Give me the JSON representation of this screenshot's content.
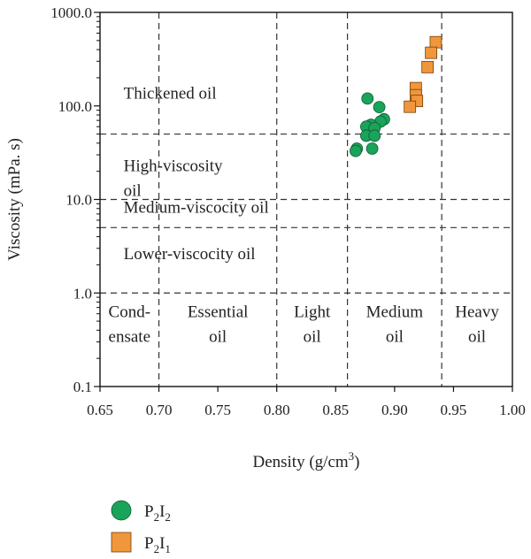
{
  "chart_data": {
    "type": "scatter",
    "xlabel": "Density (g/cm",
    "xlabel_sup": "3",
    "xlabel_end": ")",
    "ylabel": "Viscosity (mPa. s)",
    "xlim": [
      0.65,
      1.0
    ],
    "ylim": [
      0.1,
      1000
    ],
    "yscale": "log",
    "x_ticks": [
      "0.65",
      "0.70",
      "0.75",
      "0.80",
      "0.85",
      "0.90",
      "0.95",
      "1.00"
    ],
    "y_ticks": [
      "0.1",
      "1.0",
      "10.0",
      "100.0",
      "1000.0"
    ],
    "x_tick_values": [
      0.65,
      0.7,
      0.75,
      0.8,
      0.85,
      0.9,
      0.95,
      1.0
    ],
    "y_tick_values": [
      0.1,
      1,
      10,
      100,
      1000
    ],
    "vertical_guides": [
      0.7,
      0.8,
      0.86,
      0.94
    ],
    "horizontal_guides": [
      1,
      5,
      10,
      50
    ],
    "region_labels": [
      {
        "lines": [
          "Thickened oil"
        ],
        "x": 0.67,
        "y": 120
      },
      {
        "lines": [
          "High-viscosity",
          "oil"
        ],
        "x": 0.67,
        "y": 20
      },
      {
        "lines": [
          "Medium-viscocity oil"
        ],
        "x": 0.67,
        "y": 7.2
      },
      {
        "lines": [
          "Lower-viscocity oil"
        ],
        "x": 0.67,
        "y": 2.3
      },
      {
        "lines": [
          "Cond-",
          "ensate"
        ],
        "x": 0.675,
        "y": 0.55
      },
      {
        "lines": [
          "Essential",
          "oil"
        ],
        "x": 0.75,
        "y": 0.55
      },
      {
        "lines": [
          "Light",
          "oil"
        ],
        "x": 0.83,
        "y": 0.55
      },
      {
        "lines": [
          "Medium",
          "oil"
        ],
        "x": 0.9,
        "y": 0.55
      },
      {
        "lines": [
          "Heavy",
          "oil"
        ],
        "x": 0.97,
        "y": 0.55
      }
    ],
    "series": [
      {
        "name_main": "P",
        "name_sub1": "2",
        "name_mid": "I",
        "name_sub2": "2",
        "marker": "circle",
        "color": "#1aa35a",
        "points": [
          {
            "x": 0.877,
            "y": 120
          },
          {
            "x": 0.887,
            "y": 97
          },
          {
            "x": 0.891,
            "y": 72
          },
          {
            "x": 0.888,
            "y": 68
          },
          {
            "x": 0.88,
            "y": 63
          },
          {
            "x": 0.876,
            "y": 60
          },
          {
            "x": 0.883,
            "y": 58
          },
          {
            "x": 0.876,
            "y": 48
          },
          {
            "x": 0.883,
            "y": 48
          },
          {
            "x": 0.868,
            "y": 35
          },
          {
            "x": 0.881,
            "y": 35
          },
          {
            "x": 0.867,
            "y": 33
          }
        ]
      },
      {
        "name_main": "P",
        "name_sub1": "2",
        "name_mid": "I",
        "name_sub2": "1",
        "marker": "square",
        "color": "#f0963c",
        "points": [
          {
            "x": 0.935,
            "y": 480
          },
          {
            "x": 0.931,
            "y": 370
          },
          {
            "x": 0.928,
            "y": 260
          },
          {
            "x": 0.918,
            "y": 155
          },
          {
            "x": 0.918,
            "y": 130
          },
          {
            "x": 0.919,
            "y": 113
          },
          {
            "x": 0.913,
            "y": 98
          }
        ]
      }
    ],
    "grid": false
  }
}
